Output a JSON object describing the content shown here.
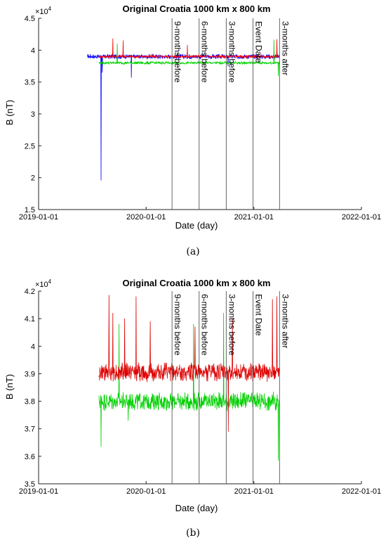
{
  "captions": [
    "(a)",
    "(b)"
  ],
  "chart_data": [
    {
      "type": "line",
      "title": "Original Croatia 1000 km x 800 km",
      "xlabel": "Date (day)",
      "ylabel": "B (nT)",
      "y_exponent": "×10^4",
      "x_tick_labels": [
        "2019-01-01",
        "2020-01-01",
        "2021-01-01",
        "2022-01-01"
      ],
      "x_ticks": [
        "2019-01-01",
        "2020-01-01",
        "2021-01-01",
        "2022-01-01"
      ],
      "xlim": [
        "2019-01-01",
        "2022-01-01"
      ],
      "y_tick_labels": [
        "1.5",
        "2",
        "2.5",
        "3",
        "3.5",
        "4",
        "4.5"
      ],
      "ylim": [
        1.5,
        4.5
      ],
      "y_ticks": [
        1.5,
        2,
        2.5,
        3,
        3.5,
        4,
        4.5
      ],
      "vertical_markers": [
        {
          "label": "9-months before",
          "date": "2020-03-29"
        },
        {
          "label": "6-months before",
          "date": "2020-06-29"
        },
        {
          "label": "3-months before",
          "date": "2020-09-29"
        },
        {
          "label": "Event Date",
          "date": "2020-12-29"
        },
        {
          "label": "3-months after",
          "date": "2021-03-29"
        }
      ],
      "series": [
        {
          "color": "#0000ff",
          "x_range": [
            "2019-06-15",
            "2021-03-29"
          ],
          "baseline": 3.9,
          "noise": 0.04,
          "spikes": [
            {
              "date": "2019-08-01",
              "value": 1.96
            },
            {
              "date": "2019-08-05",
              "value": 3.65
            },
            {
              "date": "2019-11-12",
              "value": 3.57
            },
            {
              "date": "2020-10-05",
              "value": 3.75
            }
          ]
        },
        {
          "color": "#ff0000",
          "x_range": [
            "2019-07-25",
            "2021-03-29"
          ],
          "baseline": 3.9,
          "noise": 0.025,
          "spikes": [
            {
              "date": "2019-09-10",
              "value": 4.18
            },
            {
              "date": "2019-10-15",
              "value": 4.15
            },
            {
              "date": "2020-05-20",
              "value": 4.08
            },
            {
              "date": "2021-03-20",
              "value": 4.17
            }
          ]
        },
        {
          "color": "#00d000",
          "x_range": [
            "2019-07-25",
            "2021-03-29"
          ],
          "baseline": 3.8,
          "noise": 0.025,
          "spikes": [
            {
              "date": "2019-09-25",
              "value": 4.1
            },
            {
              "date": "2021-03-10",
              "value": 4.16
            },
            {
              "date": "2021-03-25",
              "value": 3.6
            }
          ]
        }
      ]
    },
    {
      "type": "line",
      "title": "Original Croatia 1000 km x 800 km",
      "xlabel": "Date (day)",
      "ylabel": "B (nT)",
      "y_exponent": "×10^4",
      "x_tick_labels": [
        "2019-01-01",
        "2020-01-01",
        "2021-01-01",
        "2022-01-01"
      ],
      "x_ticks": [
        "2019-01-01",
        "2020-01-01",
        "2021-01-01",
        "2022-01-01"
      ],
      "xlim": [
        "2019-01-01",
        "2022-01-01"
      ],
      "y_tick_labels": [
        "3.5",
        "3.6",
        "3.7",
        "3.8",
        "3.9",
        "4",
        "4.1",
        "4.2"
      ],
      "ylim": [
        3.5,
        4.2
      ],
      "y_ticks": [
        3.5,
        3.6,
        3.7,
        3.8,
        3.9,
        4.0,
        4.1,
        4.2
      ],
      "vertical_markers": [
        {
          "label": "9-months before",
          "date": "2020-03-29"
        },
        {
          "label": "6-months before",
          "date": "2020-06-29"
        },
        {
          "label": "3-months before",
          "date": "2020-09-29"
        },
        {
          "label": "Event Date",
          "date": "2020-12-29"
        },
        {
          "label": "3-months after",
          "date": "2021-03-29"
        }
      ],
      "series": [
        {
          "color": "#00d000",
          "x_range": [
            "2019-07-25",
            "2021-03-29"
          ],
          "baseline": 3.8,
          "noise": 0.035,
          "spikes": [
            {
              "date": "2019-08-01",
              "value": 3.635
            },
            {
              "date": "2019-10-01",
              "value": 4.08
            },
            {
              "date": "2019-11-01",
              "value": 3.73
            },
            {
              "date": "2020-06-10",
              "value": 4.08
            },
            {
              "date": "2020-09-20",
              "value": 4.12
            },
            {
              "date": "2021-03-25",
              "value": 3.585
            }
          ]
        },
        {
          "color": "#dd0000",
          "x_range": [
            "2019-07-25",
            "2021-03-29"
          ],
          "baseline": 3.905,
          "noise": 0.035,
          "spikes": [
            {
              "date": "2019-08-28",
              "value": 4.185
            },
            {
              "date": "2019-09-10",
              "value": 4.12
            },
            {
              "date": "2019-10-20",
              "value": 4.1
            },
            {
              "date": "2019-11-28",
              "value": 4.18
            },
            {
              "date": "2020-01-15",
              "value": 4.09
            },
            {
              "date": "2020-06-15",
              "value": 4.07
            },
            {
              "date": "2020-10-06",
              "value": 3.69
            },
            {
              "date": "2020-10-20",
              "value": 4.1
            },
            {
              "date": "2021-03-05",
              "value": 4.17
            },
            {
              "date": "2021-03-20",
              "value": 4.18
            }
          ]
        }
      ]
    }
  ]
}
